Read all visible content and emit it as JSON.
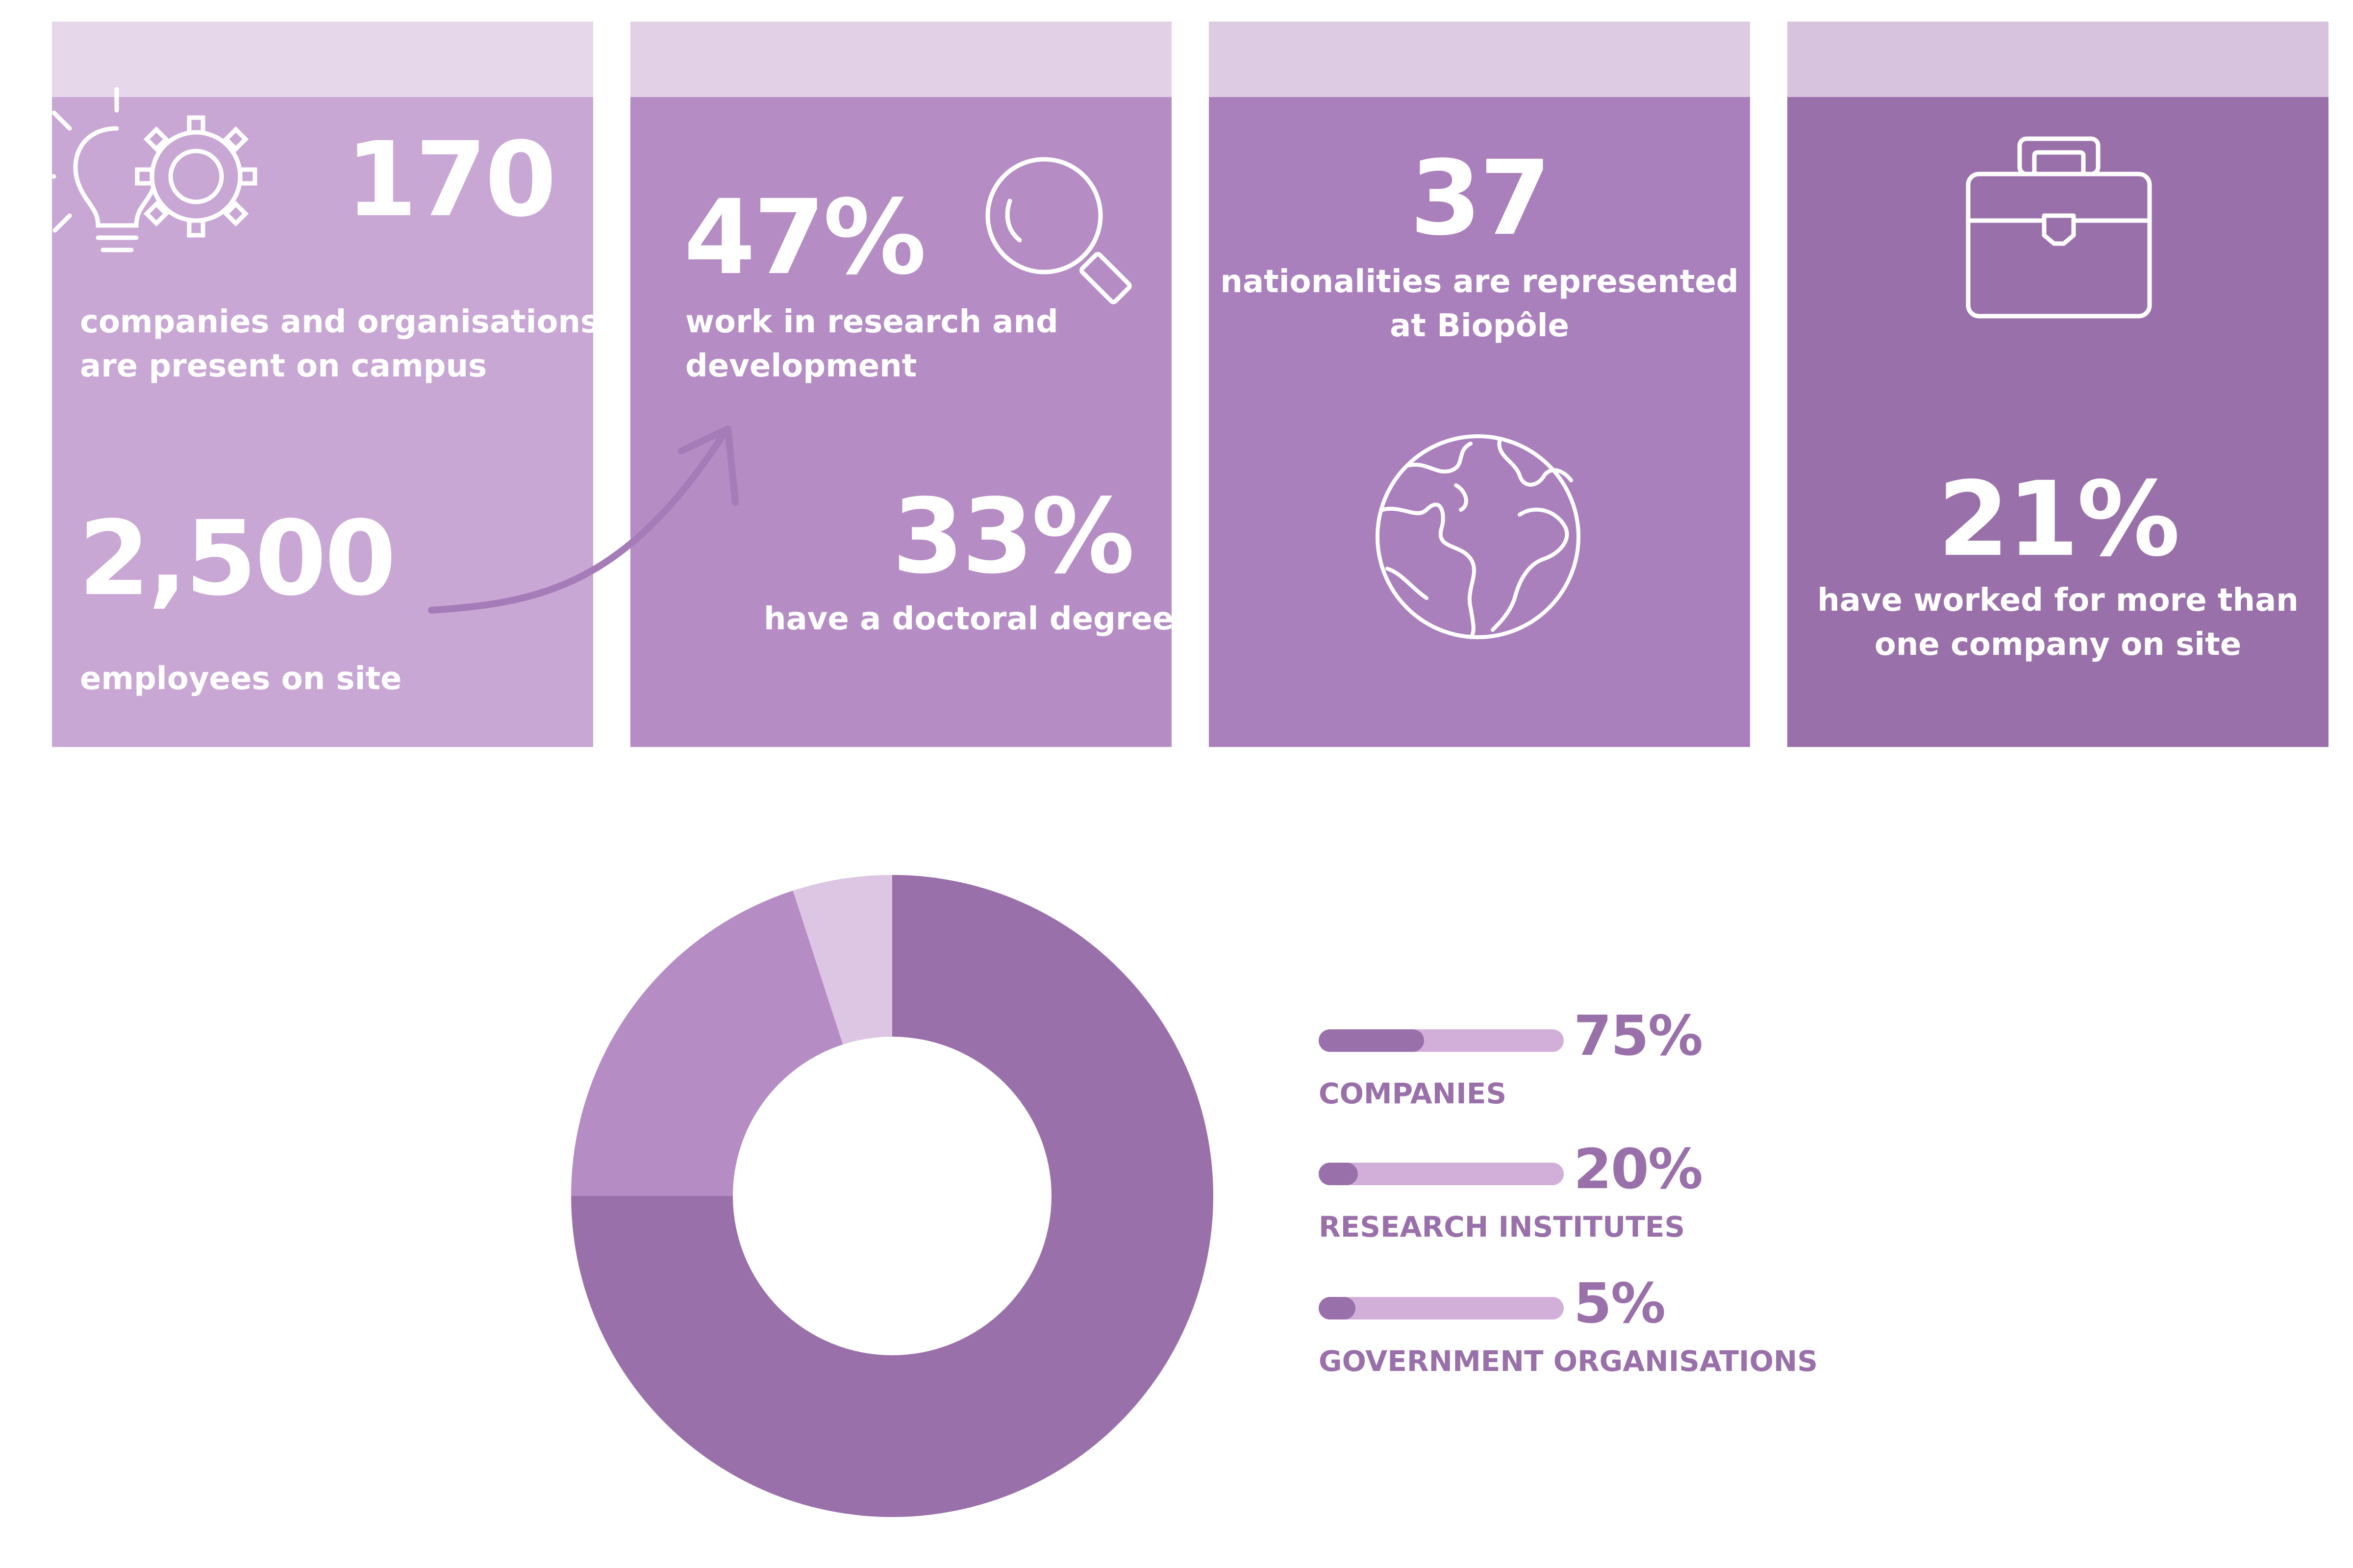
{
  "colors": {
    "card1_band": "#e6d7ea",
    "card1_body": "#c9a7d4",
    "card2_band": "#e1d0e6",
    "card2_body": "#b58dc4",
    "card3_band": "#ddcbe3",
    "card3_body": "#aa80bc",
    "card4_band": "#d8c3df",
    "card4_body": "#9a70aa",
    "dark": "#9a70aa",
    "medium": "#b58dc4",
    "light": "#dcc6e3",
    "track": "#d2afd9"
  },
  "cards": [
    {
      "icon": "lightbulb-gear-icon",
      "stat1_value": "170",
      "stat1_text": [
        "companies and organisations",
        "are present on campus"
      ],
      "stat2_value": "2,500",
      "stat2_text": [
        "employees on site"
      ]
    },
    {
      "icon": "magnifier-icon",
      "stat1_value": "47%",
      "stat1_text": [
        "work in research and",
        "development"
      ],
      "stat2_value": "33%",
      "stat2_text": [
        "have a doctoral degree"
      ]
    },
    {
      "icon": "globe-icon",
      "stat1_value": "37",
      "stat1_text": [
        "nationalities are represented",
        "at Biopôle"
      ]
    },
    {
      "icon": "briefcase-icon",
      "stat1_value": "21%",
      "stat1_text": [
        "have worked for more than",
        "one company on site"
      ]
    }
  ],
  "chart_data": {
    "type": "pie",
    "categories": [
      "COMPANIES",
      "RESEARCH INSTITUTES",
      "GOVERNMENT ORGANISATIONS"
    ],
    "values": [
      75,
      20,
      5
    ],
    "value_labels": [
      "75%",
      "20%",
      "5%"
    ],
    "colors": [
      "#9a70aa",
      "#b58dc4",
      "#dcc6e3"
    ],
    "donut": true,
    "legend": "right"
  }
}
